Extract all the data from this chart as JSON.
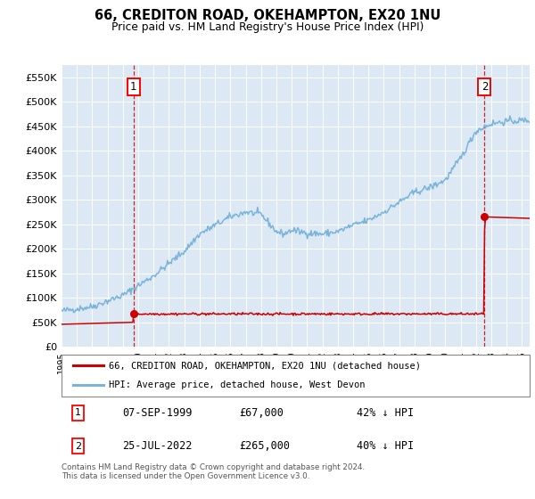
{
  "title_line1": "66, CREDITON ROAD, OKEHAMPTON, EX20 1NU",
  "title_line2": "Price paid vs. HM Land Registry's House Price Index (HPI)",
  "ylim": [
    0,
    575000
  ],
  "yticks": [
    0,
    50000,
    100000,
    150000,
    200000,
    250000,
    300000,
    350000,
    400000,
    450000,
    500000,
    550000
  ],
  "ytick_labels": [
    "£0",
    "£50K",
    "£100K",
    "£150K",
    "£200K",
    "£250K",
    "£300K",
    "£350K",
    "£400K",
    "£450K",
    "£500K",
    "£550K"
  ],
  "background_color": "#dce9f5",
  "hpi_color": "#7ab4d8",
  "sale_color": "#cc0000",
  "legend_label_red": "66, CREDITON ROAD, OKEHAMPTON, EX20 1NU (detached house)",
  "legend_label_blue": "HPI: Average price, detached house, West Devon",
  "sale1_year": 1999.69,
  "sale1_price": 67000,
  "sale2_year": 2022.56,
  "sale2_price": 265000,
  "table_rows": [
    [
      "1",
      "07-SEP-1999",
      "£67,000",
      "42% ↓ HPI"
    ],
    [
      "2",
      "25-JUL-2022",
      "£265,000",
      "40% ↓ HPI"
    ]
  ],
  "footnote": "Contains HM Land Registry data © Crown copyright and database right 2024.\nThis data is licensed under the Open Government Licence v3.0.",
  "xmin": 1995.0,
  "xmax": 2025.5,
  "hpi_breakpoints": [
    1995,
    1997,
    1999,
    2001,
    2003,
    2004,
    2005,
    2006,
    2007,
    2008,
    2009,
    2009.5,
    2010,
    2011,
    2012,
    2013,
    2014,
    2015,
    2016,
    2017,
    2018,
    2019,
    2020,
    2021,
    2022,
    2023,
    2024,
    2025.5
  ],
  "hpi_values": [
    73000,
    82000,
    105000,
    145000,
    195000,
    230000,
    248000,
    265000,
    275000,
    270000,
    235000,
    230000,
    238000,
    232000,
    230000,
    235000,
    248000,
    258000,
    275000,
    295000,
    315000,
    325000,
    340000,
    385000,
    440000,
    455000,
    460000,
    462000
  ],
  "sale_breakpoints": [
    1995,
    1999.68,
    1999.7,
    2022.54,
    2022.57,
    2025.5
  ],
  "sale_values": [
    46000,
    50000,
    67000,
    67000,
    265000,
    262000
  ]
}
